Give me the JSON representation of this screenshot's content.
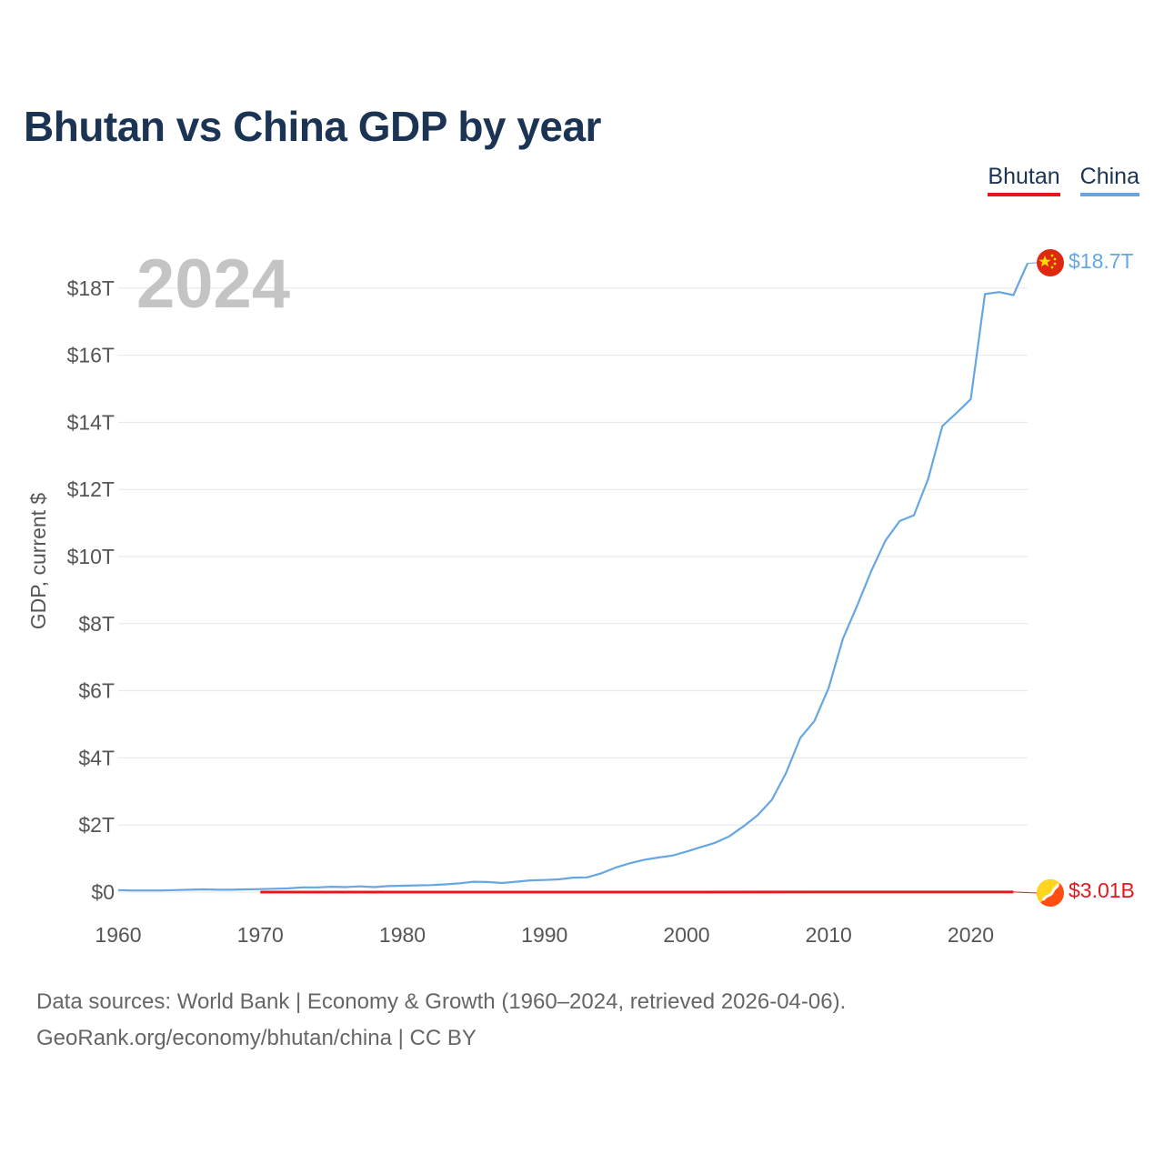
{
  "header": {
    "title": "Bhutan vs China GDP by year"
  },
  "legend": {
    "bhutan_label": "Bhutan",
    "china_label": "China"
  },
  "current_year": "2024",
  "end_labels": {
    "china": "$18.7T",
    "bhutan": "$3.01B"
  },
  "footer": {
    "line1": "Data sources: World Bank | Economy & Growth (1960–2024, retrieved 2026-04-06).",
    "line2": "GeoRank.org/economy/bhutan/china | CC BY"
  },
  "colors": {
    "bhutan": "#e8161b",
    "china": "#66a6e2",
    "title": "#1b3454"
  },
  "icons": {
    "china": "china-flag-icon",
    "bhutan": "bhutan-flag-icon"
  },
  "chart_data": {
    "type": "line",
    "ylabel": "GDP, current $",
    "xlabel": "",
    "xlim": [
      1960,
      2024
    ],
    "ylim": [
      0,
      18.7
    ],
    "y_unit": "trillion USD",
    "xticks": [
      {
        "value": 1960,
        "label": "1960"
      },
      {
        "value": 1970,
        "label": "1970"
      },
      {
        "value": 1980,
        "label": "1980"
      },
      {
        "value": 1990,
        "label": "1990"
      },
      {
        "value": 2000,
        "label": "2000"
      },
      {
        "value": 2010,
        "label": "2010"
      },
      {
        "value": 2020,
        "label": "2020"
      }
    ],
    "yticks": [
      {
        "value": 0,
        "label": "$0"
      },
      {
        "value": 2,
        "label": "$2T"
      },
      {
        "value": 4,
        "label": "$4T"
      },
      {
        "value": 6,
        "label": "$6T"
      },
      {
        "value": 8,
        "label": "$8T"
      },
      {
        "value": 10,
        "label": "$10T"
      },
      {
        "value": 12,
        "label": "$12T"
      },
      {
        "value": 14,
        "label": "$14T"
      },
      {
        "value": 16,
        "label": "$16T"
      },
      {
        "value": 18,
        "label": "$18T"
      }
    ],
    "grid": true,
    "series": [
      {
        "name": "China",
        "years": [
          1960,
          1961,
          1962,
          1963,
          1964,
          1965,
          1966,
          1967,
          1968,
          1969,
          1970,
          1971,
          1972,
          1973,
          1974,
          1975,
          1976,
          1977,
          1978,
          1979,
          1980,
          1981,
          1982,
          1983,
          1984,
          1985,
          1986,
          1987,
          1988,
          1989,
          1990,
          1991,
          1992,
          1993,
          1994,
          1995,
          1996,
          1997,
          1998,
          1999,
          2000,
          2001,
          2002,
          2003,
          2004,
          2005,
          2006,
          2007,
          2008,
          2009,
          2010,
          2011,
          2012,
          2013,
          2014,
          2015,
          2016,
          2017,
          2018,
          2019,
          2020,
          2021,
          2022,
          2023,
          2024
        ],
        "values": [
          0.06,
          0.05,
          0.05,
          0.05,
          0.06,
          0.07,
          0.08,
          0.07,
          0.07,
          0.08,
          0.09,
          0.1,
          0.11,
          0.14,
          0.14,
          0.16,
          0.15,
          0.17,
          0.15,
          0.18,
          0.19,
          0.2,
          0.21,
          0.23,
          0.26,
          0.31,
          0.3,
          0.27,
          0.31,
          0.35,
          0.36,
          0.38,
          0.43,
          0.44,
          0.56,
          0.73,
          0.86,
          0.96,
          1.03,
          1.09,
          1.21,
          1.34,
          1.47,
          1.66,
          1.96,
          2.29,
          2.75,
          3.55,
          4.59,
          5.1,
          6.09,
          7.55,
          8.53,
          9.57,
          10.48,
          11.06,
          11.23,
          12.31,
          13.89,
          14.28,
          14.69,
          17.82,
          17.88,
          17.79,
          18.74
        ]
      },
      {
        "name": "Bhutan",
        "years": [
          1970,
          1980,
          1990,
          2000,
          2010,
          2023
        ],
        "values": [
          0.0001,
          0.0001,
          0.0003,
          0.0004,
          0.0015,
          0.003
        ]
      }
    ]
  }
}
